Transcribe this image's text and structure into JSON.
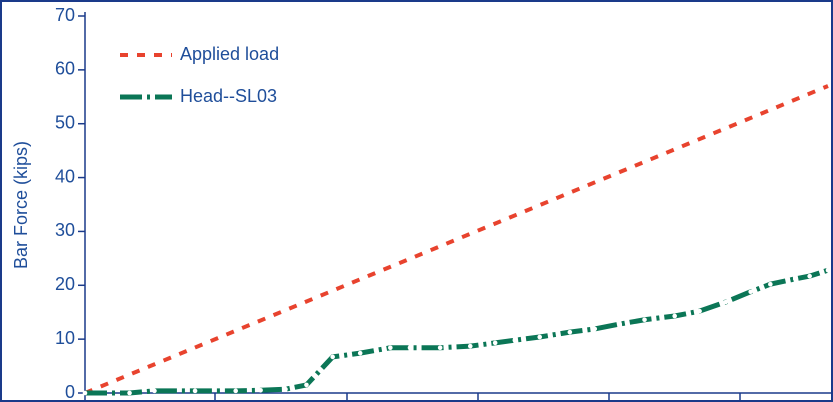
{
  "chart_data": {
    "type": "line",
    "y_label": "Bar Force (kips)",
    "xlim": [
      0,
      5.67
    ],
    "ylim": [
      0,
      70
    ],
    "yticks": [
      0,
      10,
      20,
      30,
      40,
      50,
      60,
      70
    ],
    "legend": "upper left",
    "series": [
      {
        "name": "Applied load",
        "color": "#e8432e",
        "style": "dotted",
        "x": [
          0,
          5.67
        ],
        "values": [
          0,
          57
        ]
      },
      {
        "name": "Head--SL03",
        "color": "#0b7656",
        "style": "dash-dot",
        "x": [
          0,
          0.34,
          0.53,
          0.84,
          1.15,
          1.34,
          1.53,
          1.69,
          1.89,
          2.1,
          2.33,
          2.48,
          2.71,
          2.94,
          3.13,
          3.28,
          3.47,
          3.7,
          3.89,
          4.08,
          4.27,
          4.5,
          4.69,
          4.89,
          5.08,
          5.23,
          5.42,
          5.53,
          5.67
        ],
        "values": [
          0,
          0,
          0.4,
          0.4,
          0.4,
          0.5,
          0.7,
          1.5,
          6.7,
          7.4,
          8.4,
          8.4,
          8.4,
          8.7,
          9.3,
          9.8,
          10.4,
          11.3,
          11.9,
          12.8,
          13.6,
          14.3,
          15.2,
          16.9,
          18.8,
          20.2,
          21.2,
          21.7,
          22.8
        ]
      }
    ]
  }
}
